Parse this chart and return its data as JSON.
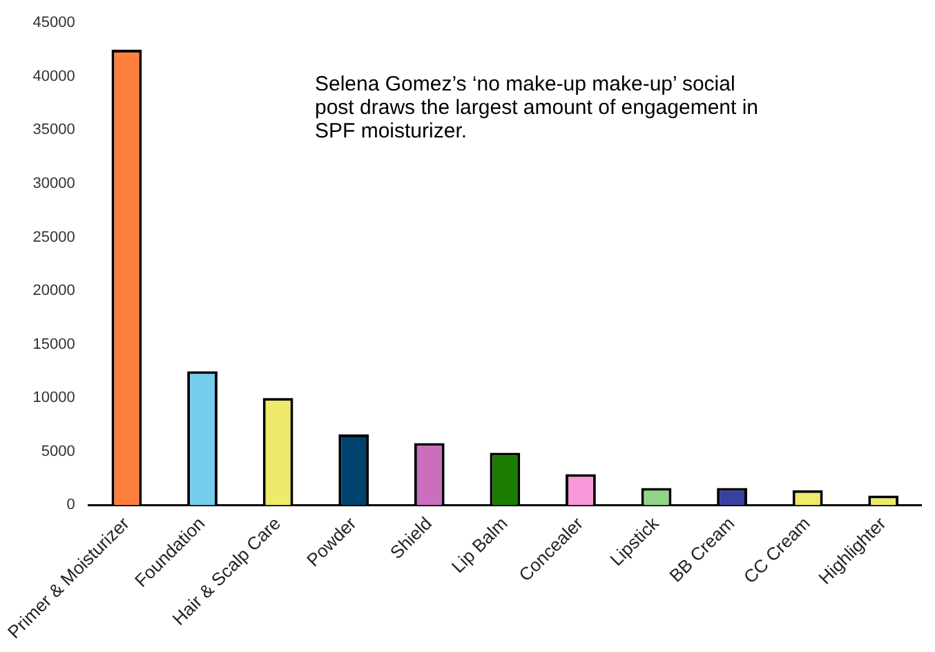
{
  "chart_data": {
    "type": "bar",
    "categories": [
      "Primer & Moisturizer",
      "Foundation",
      "Hair & Scalp Care",
      "Powder",
      "Shield",
      "Lip Balm",
      "Concealer",
      "Lipstick",
      "BB Cream",
      "CC Cream",
      "Highlighter"
    ],
    "values": [
      42500,
      12500,
      10000,
      6600,
      5800,
      4900,
      2900,
      1600,
      1600,
      1400,
      900
    ],
    "colors": [
      "#ff7f3f",
      "#75cdee",
      "#eeea6a",
      "#00426e",
      "#c96fbe",
      "#1a7d00",
      "#f998d8",
      "#90d586",
      "#3a3fa2",
      "#eeea6a",
      "#eeea6a"
    ],
    "ylim": [
      0,
      45000
    ],
    "yticks": [
      0,
      5000,
      10000,
      15000,
      20000,
      25000,
      30000,
      35000,
      40000,
      45000
    ],
    "grid": false,
    "legend": false,
    "annotations": [
      "Selena Gomez’s ‘no make-up make-up’ social post draws the largest amount of engagement in SPF moisturizer."
    ]
  }
}
